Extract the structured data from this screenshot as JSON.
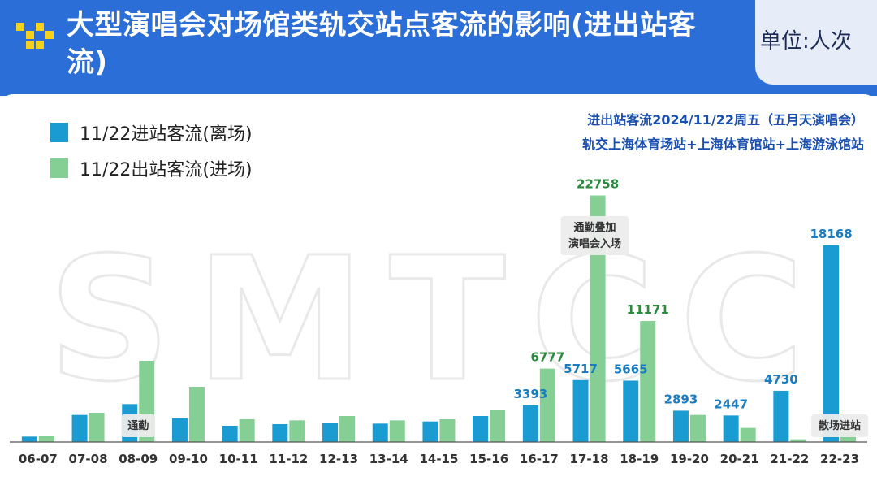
{
  "header": {
    "title": "大型演唱会对场馆类轨交站点客流的影响(进出站客流)",
    "unit_label": "单位:人次"
  },
  "notes": {
    "line1": "进出站客流2024/11/22周五（五月天演唱会）",
    "line2": "轨交上海体育场站+上海体育馆站+上海游泳馆站"
  },
  "watermark": "SMTCC",
  "colors": {
    "header_bg": "#2c6ed8",
    "entry_color": "#1a9cd3",
    "exit_color": "#85cf94",
    "entry_label": "#1a7dc2",
    "exit_label": "#2a8a3e",
    "annotation_bg": "#ececec"
  },
  "chart_data": {
    "type": "bar",
    "categories": [
      "06-07",
      "07-08",
      "08-09",
      "09-10",
      "10-11",
      "11-12",
      "12-13",
      "13-14",
      "14-15",
      "15-16",
      "16-17",
      "17-18",
      "18-19",
      "19-20",
      "20-21",
      "21-22",
      "22-23"
    ],
    "series": [
      {
        "name": "11/22进站客流(离场)",
        "values": [
          500,
          2500,
          3500,
          2200,
          1500,
          1650,
          1800,
          1700,
          1900,
          2400,
          3393,
          5717,
          5665,
          2893,
          2447,
          4730,
          18168
        ]
      },
      {
        "name": "11/22出站客流(进场)",
        "values": [
          600,
          2700,
          7500,
          5100,
          2100,
          2000,
          2400,
          2000,
          2100,
          3000,
          6777,
          22758,
          11171,
          2500,
          1300,
          250,
          900
        ]
      }
    ],
    "data_labels": [
      {
        "series": 0,
        "index": 10,
        "text": "3393"
      },
      {
        "series": 1,
        "index": 10,
        "text": "6777"
      },
      {
        "series": 0,
        "index": 11,
        "text": "5717"
      },
      {
        "series": 1,
        "index": 11,
        "text": "22758"
      },
      {
        "series": 0,
        "index": 12,
        "text": "5665"
      },
      {
        "series": 1,
        "index": 12,
        "text": "11171"
      },
      {
        "series": 0,
        "index": 13,
        "text": "2893"
      },
      {
        "series": 0,
        "index": 14,
        "text": "2447"
      },
      {
        "series": 0,
        "index": 15,
        "text": "4730"
      },
      {
        "series": 0,
        "index": 16,
        "text": "18168"
      }
    ],
    "annotations": [
      {
        "text": "通勤",
        "index": 2
      },
      {
        "text": "通勤叠加演唱会入场",
        "lines": [
          "通勤叠加",
          "演唱会入场"
        ],
        "index": 11
      },
      {
        "text": "散场进站",
        "index": 16
      }
    ],
    "ylim": [
      0,
      24000
    ],
    "legend_position": "top-left",
    "grid": false
  }
}
